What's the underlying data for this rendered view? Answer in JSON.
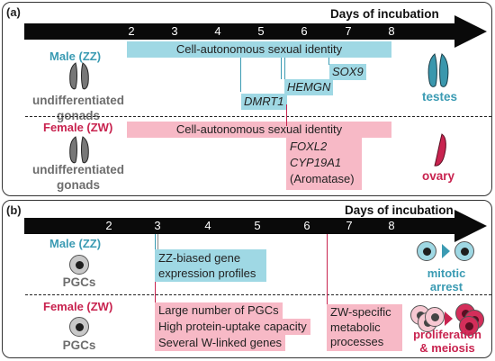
{
  "panel_a": {
    "label": "(a)",
    "axis_title": "Days of incubation",
    "ticks": [
      "2",
      "3",
      "4",
      "5",
      "6",
      "7",
      "8"
    ],
    "male": {
      "label": "Male (ZZ)",
      "gonad_label": "undifferentiated gonads",
      "identity_bar": "Cell-autonomous sexual identity",
      "genes": [
        "SOX9",
        "HEMGN",
        "DMRT1"
      ],
      "outcome": "testes"
    },
    "female": {
      "label": "Female (ZW)",
      "gonad_label": "undifferentiated gonads",
      "identity_bar": "Cell-autonomous sexual identity",
      "genes_box": [
        "FOXL2",
        "CYP19A1",
        "(Aromatase)"
      ],
      "outcome": "ovary"
    }
  },
  "panel_b": {
    "label": "(b)",
    "axis_title": "Days of incubation",
    "ticks": [
      "2",
      "3",
      "4",
      "5",
      "6",
      "7",
      "8"
    ],
    "male": {
      "label": "Male (ZZ)",
      "cell_label": "PGCs",
      "box": [
        "ZZ-biased gene",
        "expression profiles"
      ],
      "outcome": [
        "mitotic",
        "arrest"
      ]
    },
    "female": {
      "label": "Female (ZW)",
      "cell_label": "PGCs",
      "items": [
        "Large number of PGCs",
        "High protein-uptake capacity",
        "Several W-linked genes"
      ],
      "box": [
        "ZW-specific",
        "metabolic",
        "processes"
      ],
      "outcome": [
        "proliferation",
        "& meiosis"
      ]
    }
  },
  "colors": {
    "male": "#3b9bb3",
    "female": "#c8234f",
    "male_bar": "#9fd8e4",
    "female_bar": "#f7b9c6",
    "gray": "#6d6d6d"
  },
  "icons": [
    "gonad-icon",
    "testis-icon",
    "ovary-icon",
    "pgc-cell-icon",
    "arrow-right-icon"
  ]
}
